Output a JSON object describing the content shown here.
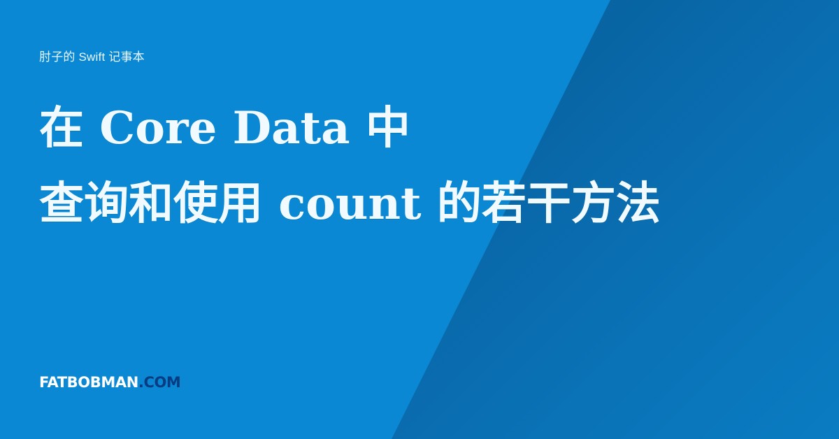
{
  "site": {
    "eyebrow": "肘子的 Swift 记事本"
  },
  "article": {
    "title_line_1": "在 Core Data 中",
    "title_line_2": "查询和使用 count 的若干方法"
  },
  "brand": {
    "main": "FATBOBMAN",
    "domain": ".COM"
  },
  "colors": {
    "background": "#0A88D4",
    "diagonal_panel_dark": "#024F81",
    "headline_text": "#F1FAFF",
    "brand_domain": "#063D82"
  }
}
